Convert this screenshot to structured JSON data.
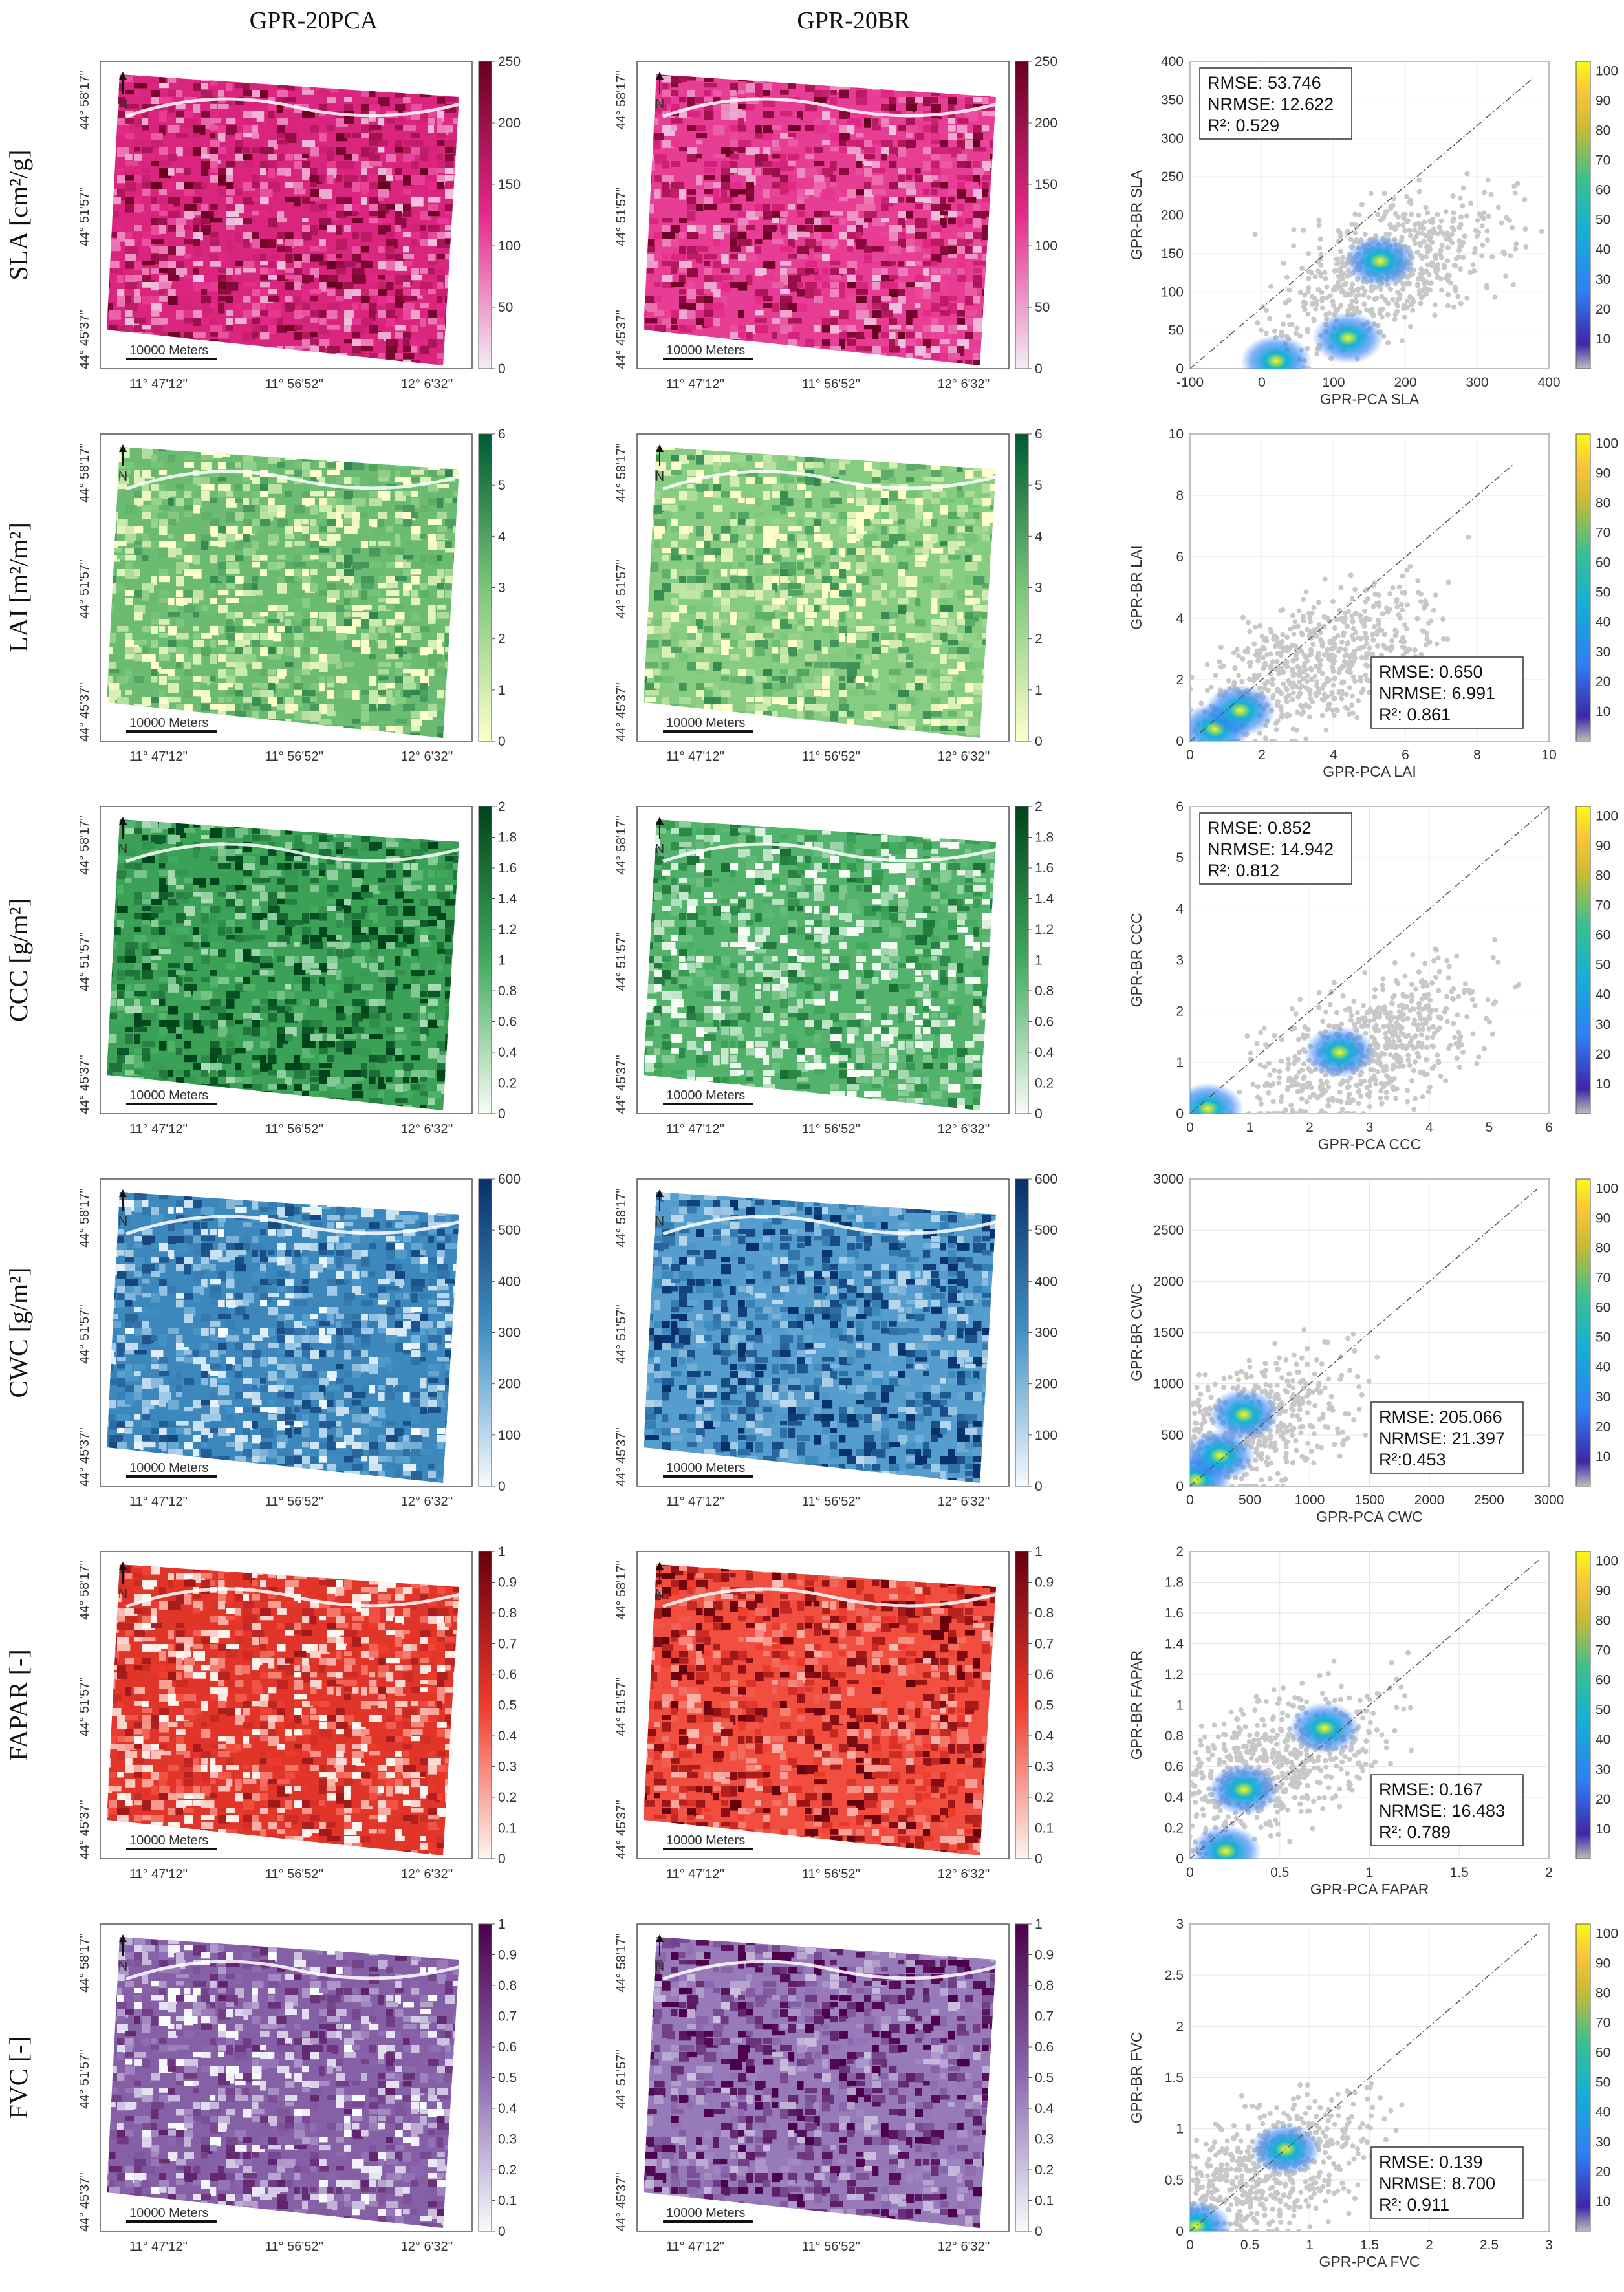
{
  "columns": [
    "GPR-20PCA",
    "GPR-20BR"
  ],
  "map_coords": {
    "lat": [
      "44° 58'17''",
      "44° 51'57''",
      "44° 45'37''"
    ],
    "lon": [
      "11° 47'12''",
      "11° 56'52''",
      "12° 6'32''"
    ],
    "scalebar": "10000 Meters",
    "north": "N"
  },
  "rows": [
    {
      "label": "SLA [cm²/g]",
      "cbar": {
        "ticks": [
          "0",
          "50",
          "100",
          "150",
          "200",
          "250"
        ]
      },
      "colors": {
        "lo": "#f2eef6",
        "hi": "#67001f",
        "mid": "#e7298a"
      }
    },
    {
      "label": "LAI [m²/m²]",
      "cbar": {
        "ticks": [
          "0",
          "1",
          "2",
          "3",
          "4",
          "5",
          "6"
        ]
      },
      "colors": {
        "lo": "#ffffcc",
        "hi": "#005a32",
        "mid": "#78c679"
      }
    },
    {
      "label": "CCC [g/m²]",
      "cbar": {
        "ticks": [
          "0",
          "0.2",
          "0.4",
          "0.6",
          "0.8",
          "1",
          "1.2",
          "1.4",
          "1.6",
          "1.8",
          "2"
        ]
      },
      "colors": {
        "lo": "#f7fcf5",
        "hi": "#00441b",
        "mid": "#41ab5d"
      }
    },
    {
      "label": "CWC [g/m²]",
      "cbar": {
        "ticks": [
          "0",
          "100",
          "200",
          "300",
          "400",
          "500",
          "600"
        ]
      },
      "colors": {
        "lo": "#f7fbff",
        "hi": "#08306b",
        "mid": "#4292c6"
      }
    },
    {
      "label": "FAPAR [-]",
      "cbar": {
        "ticks": [
          "0",
          "0.1",
          "0.2",
          "0.3",
          "0.4",
          "0.5",
          "0.6",
          "0.7",
          "0.8",
          "0.9",
          "1"
        ]
      },
      "colors": {
        "lo": "#fff5f0",
        "hi": "#67000d",
        "mid": "#ef3b2c"
      }
    },
    {
      "label": "FVC [-]",
      "cbar": {
        "ticks": [
          "0",
          "0.1",
          "0.2",
          "0.3",
          "0.4",
          "0.5",
          "0.6",
          "0.7",
          "0.8",
          "0.9",
          "1"
        ]
      },
      "colors": {
        "lo": "#f7fcfd",
        "hi": "#4d004b",
        "mid": "#8c6bb1"
      }
    }
  ],
  "density_cbar_ticks": [
    "10",
    "20",
    "30",
    "40",
    "50",
    "60",
    "70",
    "80",
    "90",
    "100"
  ],
  "chart_data": [
    {
      "type": "scatter",
      "variable": "SLA",
      "xlabel": "GPR-PCA SLA",
      "ylabel": "GPR-BR SLA",
      "xlim": [
        -100,
        400
      ],
      "ylim": [
        0,
        400
      ],
      "xticks": [
        "-100",
        "0",
        "100",
        "200",
        "300",
        "400"
      ],
      "yticks": [
        "0",
        "50",
        "100",
        "150",
        "200",
        "250",
        "300",
        "350",
        "400"
      ],
      "stats": [
        "RMSE: 53.746",
        "NRMSE: 12.622",
        "R²: 0.529"
      ],
      "stats_position": "top-left",
      "cloud_center": [
        180,
        130
      ],
      "density_peaks": [
        [
          165,
          140
        ],
        [
          20,
          10
        ],
        [
          120,
          40
        ]
      ],
      "one_to_one": [
        -100,
        380
      ]
    },
    {
      "type": "scatter",
      "variable": "LAI",
      "xlabel": "GPR-PCA LAI",
      "ylabel": "GPR-BR LAI",
      "xlim": [
        0,
        10
      ],
      "ylim": [
        0,
        10
      ],
      "xticks": [
        "0",
        "2",
        "4",
        "6",
        "8",
        "10"
      ],
      "yticks": [
        "0",
        "2",
        "4",
        "6",
        "8",
        "10"
      ],
      "stats": [
        "RMSE: 0.650",
        "NRMSE: 6.991",
        "R²: 0.861"
      ],
      "stats_position": "bottom-right",
      "cloud_center": [
        3.5,
        2.5
      ],
      "density_peaks": [
        [
          0.7,
          0.4
        ],
        [
          1.4,
          1.0
        ]
      ],
      "one_to_one": [
        0,
        9
      ]
    },
    {
      "type": "scatter",
      "variable": "CCC",
      "xlabel": "GPR-PCA CCC",
      "ylabel": "GPR-BR CCC",
      "xlim": [
        0,
        6
      ],
      "ylim": [
        0,
        6
      ],
      "xticks": [
        "0",
        "1",
        "2",
        "3",
        "4",
        "5",
        "6"
      ],
      "yticks": [
        "0",
        "1",
        "2",
        "3",
        "4",
        "5",
        "6"
      ],
      "stats": [
        "RMSE: 0.852",
        "NRMSE: 14.942",
        "R²: 0.812"
      ],
      "stats_position": "top-left",
      "cloud_center": [
        3.0,
        1.3
      ],
      "density_peaks": [
        [
          0.3,
          0.1
        ],
        [
          2.5,
          1.2
        ]
      ],
      "one_to_one": [
        0,
        6
      ]
    },
    {
      "type": "scatter",
      "variable": "CWC",
      "xlabel": "GPR-PCA CWC",
      "ylabel": "GPR-BR CWC",
      "xlim": [
        0,
        3000
      ],
      "ylim": [
        0,
        3000
      ],
      "xticks": [
        "0",
        "500",
        "1000",
        "1500",
        "2000",
        "2500",
        "3000"
      ],
      "yticks": [
        "0",
        "500",
        "1000",
        "1500",
        "2000",
        "2500",
        "3000"
      ],
      "stats": [
        "RMSE: 205.066",
        "NRMSE: 21.397",
        "R²:0.453"
      ],
      "stats_position": "bottom-right",
      "cloud_center": [
        350,
        500
      ],
      "density_peaks": [
        [
          50,
          60
        ],
        [
          250,
          300
        ],
        [
          450,
          700
        ]
      ],
      "one_to_one": [
        0,
        2900
      ]
    },
    {
      "type": "scatter",
      "variable": "FAPAR",
      "xlabel": "GPR-PCA FAPAR",
      "ylabel": "GPR-BR FAPAR",
      "xlim": [
        0,
        2
      ],
      "ylim": [
        0,
        2
      ],
      "xticks": [
        "0",
        "0.5",
        "1",
        "1.5",
        "2"
      ],
      "yticks": [
        "0",
        "0.2",
        "0.4",
        "0.6",
        "0.8",
        "1",
        "1.2",
        "1.4",
        "1.6",
        "1.8",
        "2"
      ],
      "stats": [
        "RMSE: 0.167",
        "NRMSE: 16.483",
        "R²: 0.789"
      ],
      "stats_position": "bottom-right",
      "cloud_center": [
        0.45,
        0.6
      ],
      "density_peaks": [
        [
          0.75,
          0.85
        ],
        [
          0.2,
          0.05
        ],
        [
          0.3,
          0.45
        ]
      ],
      "one_to_one": [
        0,
        1.95
      ]
    },
    {
      "type": "scatter",
      "variable": "FVC",
      "xlabel": "GPR-PCA FVC",
      "ylabel": "GPR-BR FVC",
      "xlim": [
        0,
        3
      ],
      "ylim": [
        0,
        3
      ],
      "xticks": [
        "0",
        "0.5",
        "1",
        "1.5",
        "2",
        "2.5",
        "3"
      ],
      "yticks": [
        "0",
        "0.5",
        "1",
        "1.5",
        "2",
        "2.5",
        "3"
      ],
      "stats": [
        "RMSE: 0.139",
        "NRMSE: 8.700",
        "R²: 0.911"
      ],
      "stats_position": "bottom-right",
      "cloud_center": [
        0.6,
        0.55
      ],
      "density_peaks": [
        [
          0.05,
          0.05
        ],
        [
          0.8,
          0.8
        ]
      ],
      "one_to_one": [
        0,
        2.9
      ]
    }
  ]
}
